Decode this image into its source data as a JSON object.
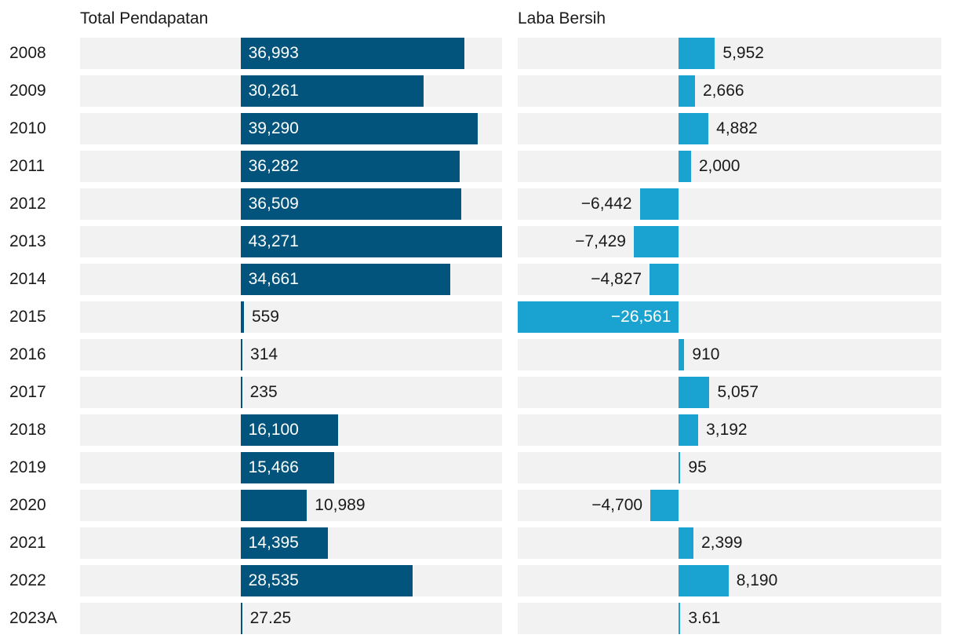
{
  "chart_data": {
    "type": "bar",
    "orientation": "horizontal",
    "categories": [
      "2008",
      "2009",
      "2010",
      "2011",
      "2012",
      "2013",
      "2014",
      "2015",
      "2016",
      "2017",
      "2018",
      "2019",
      "2020",
      "2021",
      "2022",
      "2023A"
    ],
    "series": [
      {
        "name": "Total Pendapatan",
        "color": "#02547c",
        "values": [
          36993,
          30261,
          39290,
          36282,
          36509,
          43271,
          34661,
          559,
          314,
          235,
          16100,
          15466,
          10989,
          14395,
          28535,
          27.25
        ],
        "labels": [
          "36,993",
          "30,261",
          "39,290",
          "36,282",
          "36,509",
          "43,271",
          "34,661",
          "559",
          "314",
          "235",
          "16,100",
          "15,466",
          "10,989",
          "14,395",
          "28,535",
          "27.25"
        ]
      },
      {
        "name": "Laba Bersih",
        "color": "#1aa3d0",
        "values": [
          5952,
          2666,
          4882,
          2000,
          -6442,
          -7429,
          -4827,
          -26561,
          910,
          5057,
          3192,
          95,
          -4700,
          2399,
          8190,
          3.61
        ],
        "labels": [
          "5,952",
          "2,666",
          "4,882",
          "2,000",
          "−6,442",
          "−7,429",
          "−4,827",
          "−26,561",
          "910",
          "5,057",
          "3,192",
          "95",
          "−4,700",
          "2,399",
          "8,190",
          "3.61"
        ]
      }
    ],
    "xlim_revenue": [
      -26561,
      43271
    ],
    "xlim_net": [
      -26561,
      43271
    ],
    "track_color": "#f2f2f2",
    "grid": false,
    "legend": "none"
  }
}
